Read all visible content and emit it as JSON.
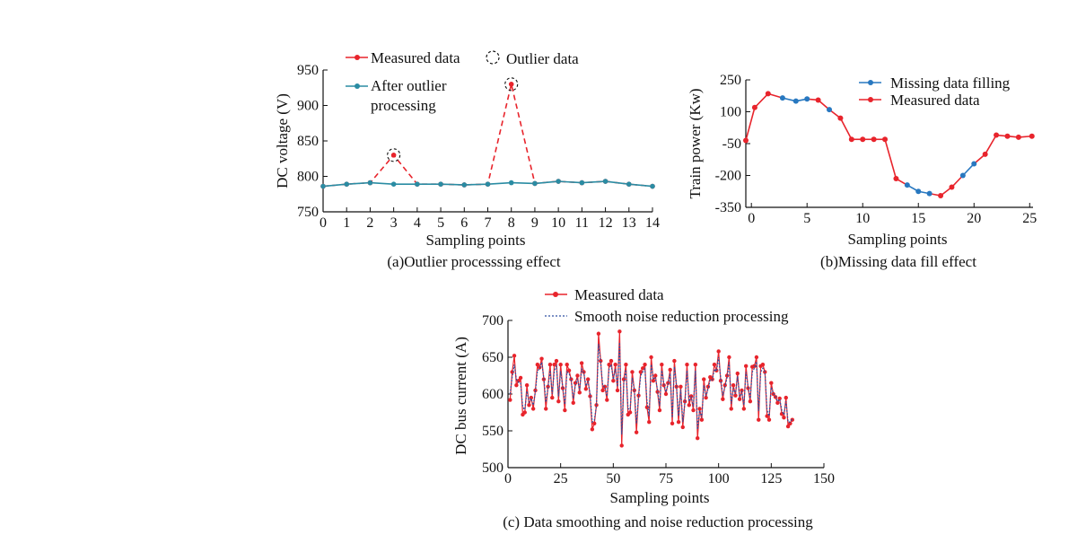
{
  "chart_data": [
    {
      "id": "a",
      "type": "line",
      "caption": "(a)Outlier processsing effect",
      "xlabel": "Sampling points",
      "ylabel": "DC voltage (V)",
      "xlim": [
        0,
        14
      ],
      "ylim": [
        750,
        950
      ],
      "xticks": [
        0,
        1,
        2,
        3,
        4,
        5,
        6,
        7,
        8,
        9,
        10,
        11,
        12,
        13,
        14
      ],
      "yticks": [
        750,
        800,
        850,
        900,
        950
      ],
      "legend": {
        "measured": "Measured data",
        "outlier": "Outlier data",
        "after_line1": "After outlier",
        "after_line2": "processing"
      },
      "series": [
        {
          "name": "Measured data",
          "color": "#e8242c",
          "x": [
            0,
            1,
            2,
            3,
            4,
            5,
            6,
            7,
            8,
            9,
            10,
            11,
            12,
            13,
            14
          ],
          "values": [
            786,
            789,
            791,
            830,
            789,
            789,
            788,
            789,
            930,
            790,
            793,
            791,
            793,
            789,
            786
          ]
        },
        {
          "name": "After outlier processing",
          "color": "#2a8ca3",
          "x": [
            0,
            1,
            2,
            3,
            4,
            5,
            6,
            7,
            8,
            9,
            10,
            11,
            12,
            13,
            14
          ],
          "values": [
            786,
            789,
            791,
            789,
            789,
            789,
            788,
            789,
            791,
            790,
            793,
            791,
            793,
            789,
            786
          ]
        }
      ],
      "outliers": [
        {
          "x": 3,
          "y": 830
        },
        {
          "x": 8,
          "y": 930
        }
      ]
    },
    {
      "id": "b",
      "type": "line",
      "caption": "(b)Missing data fill effect",
      "xlabel": "Sampling points",
      "ylabel": "Train power (Kw)",
      "xlim": [
        -0.5,
        25.3
      ],
      "ylim": [
        -350,
        250
      ],
      "xticks": [
        0,
        5,
        10,
        15,
        20,
        25
      ],
      "yticks": [
        250,
        100,
        -50,
        -200,
        -350
      ],
      "legend": {
        "filling": "Missing data filling",
        "measured": "Measured data"
      },
      "colors": {
        "measured": "#e8242c",
        "filling": "#2878c0"
      },
      "x": [
        -0.5,
        0.3,
        1.5,
        2.8,
        4,
        5,
        6,
        7,
        8,
        9,
        10,
        11,
        12,
        13,
        14,
        15,
        16,
        17,
        18,
        19,
        20,
        21,
        22,
        23,
        24,
        25.2
      ],
      "values": [
        -35,
        120,
        185,
        165,
        150,
        160,
        155,
        110,
        70,
        -30,
        -30,
        -30,
        -30,
        -215,
        -245,
        -275,
        -285,
        -295,
        -255,
        -200,
        -145,
        -100,
        -10,
        -15,
        -20,
        -15
      ],
      "filled": [
        0,
        0,
        0,
        1,
        1,
        1,
        0,
        1,
        0,
        0,
        0,
        0,
        0,
        0,
        1,
        1,
        1,
        0,
        0,
        1,
        1,
        0,
        0,
        0,
        0,
        0
      ]
    },
    {
      "id": "c",
      "type": "line",
      "caption": "(c) Data smoothing and noise reduction processing",
      "xlabel": "Sampling points",
      "ylabel": "DC bus current (A)",
      "xlim": [
        0,
        150
      ],
      "ylim": [
        500,
        700
      ],
      "xticks": [
        0,
        25,
        50,
        75,
        100,
        125,
        150
      ],
      "yticks": [
        500,
        550,
        600,
        650,
        700
      ],
      "legend": {
        "measured": "Measured data",
        "smooth": "Smooth noise reduction processing"
      },
      "colors": {
        "measured": "#e8242c",
        "smooth": "#2d4fa0"
      },
      "x_start": 1,
      "measured": [
        592,
        630,
        652,
        612,
        618,
        622,
        572,
        575,
        612,
        585,
        595,
        580,
        605,
        640,
        636,
        648,
        620,
        580,
        610,
        640,
        595,
        640,
        645,
        590,
        640,
        608,
        578,
        640,
        632,
        620,
        588,
        615,
        625,
        602,
        642,
        630,
        607,
        620,
        597,
        552,
        560,
        585,
        682,
        645,
        605,
        610,
        592,
        640,
        645,
        618,
        640,
        605,
        685,
        530,
        620,
        640,
        572,
        575,
        630,
        605,
        548,
        598,
        630,
        635,
        640,
        582,
        562,
        650,
        618,
        625,
        603,
        578,
        640,
        612,
        600,
        615,
        633,
        560,
        645,
        610,
        562,
        610,
        555,
        590,
        640,
        585,
        597,
        578,
        640,
        540,
        580,
        565,
        620,
        595,
        610,
        623,
        620,
        640,
        632,
        658,
        618,
        593,
        612,
        625,
        650,
        580,
        612,
        598,
        628,
        593,
        605,
        580,
        638,
        608,
        590,
        637,
        638,
        650,
        565,
        638,
        640,
        630,
        570,
        565,
        615,
        600,
        596,
        588,
        594,
        573,
        568,
        595,
        556,
        560,
        565
      ],
      "smooth": [
        600,
        623,
        640,
        620,
        616,
        615,
        582,
        579,
        604,
        589,
        594,
        585,
        603,
        632,
        634,
        643,
        622,
        589,
        608,
        632,
        600,
        632,
        638,
        597,
        631,
        609,
        586,
        630,
        628,
        619,
        594,
        612,
        621,
        605,
        634,
        629,
        611,
        617,
        600,
        562,
        564,
        584,
        668,
        643,
        611,
        610,
        597,
        634,
        640,
        620,
        634,
        610,
        670,
        545,
        615,
        633,
        580,
        579,
        622,
        606,
        560,
        596,
        625,
        630,
        634,
        590,
        570,
        640,
        620,
        622,
        606,
        584,
        632,
        614,
        603,
        613,
        628,
        568,
        637,
        612,
        570,
        606,
        562,
        588,
        632,
        590,
        596,
        583,
        632,
        552,
        578,
        568,
        612,
        597,
        607,
        619,
        619,
        634,
        631,
        650,
        621,
        598,
        609,
        622,
        643,
        587,
        608,
        600,
        624,
        596,
        603,
        585,
        630,
        610,
        594,
        630,
        635,
        644,
        577,
        630,
        635,
        630,
        578,
        570,
        609,
        601,
        597,
        590,
        593,
        578,
        572,
        590,
        562,
        562,
        566
      ]
    }
  ]
}
